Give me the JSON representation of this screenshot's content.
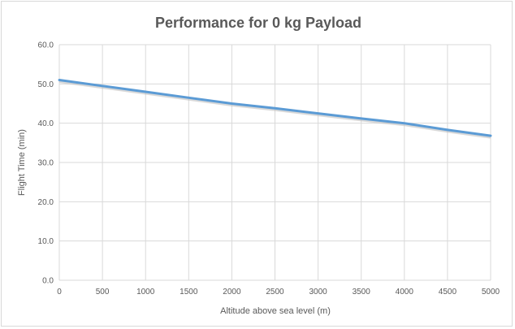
{
  "chart_data": {
    "type": "line",
    "title": "Performance for 0 kg Payload",
    "xlabel": "Altitude above sea level (m)",
    "ylabel": "Flight Time (min)",
    "xlim": [
      0,
      5000
    ],
    "ylim": [
      0,
      60
    ],
    "x_ticks": [
      "0",
      "500",
      "1000",
      "1500",
      "2000",
      "2500",
      "3000",
      "3500",
      "4000",
      "4500",
      "5000"
    ],
    "y_ticks": [
      "0.0",
      "10.0",
      "20.0",
      "30.0",
      "40.0",
      "50.0",
      "60.0"
    ],
    "grid": true,
    "legend": "none",
    "series": [
      {
        "color": "#5b9bd5",
        "x": [
          0,
          500,
          1000,
          1500,
          2000,
          2500,
          3000,
          3500,
          4000,
          4500,
          5000
        ],
        "y": [
          51.0,
          49.5,
          48.0,
          46.5,
          45.0,
          43.8,
          42.5,
          41.2,
          40.0,
          38.3,
          36.8
        ]
      }
    ]
  }
}
